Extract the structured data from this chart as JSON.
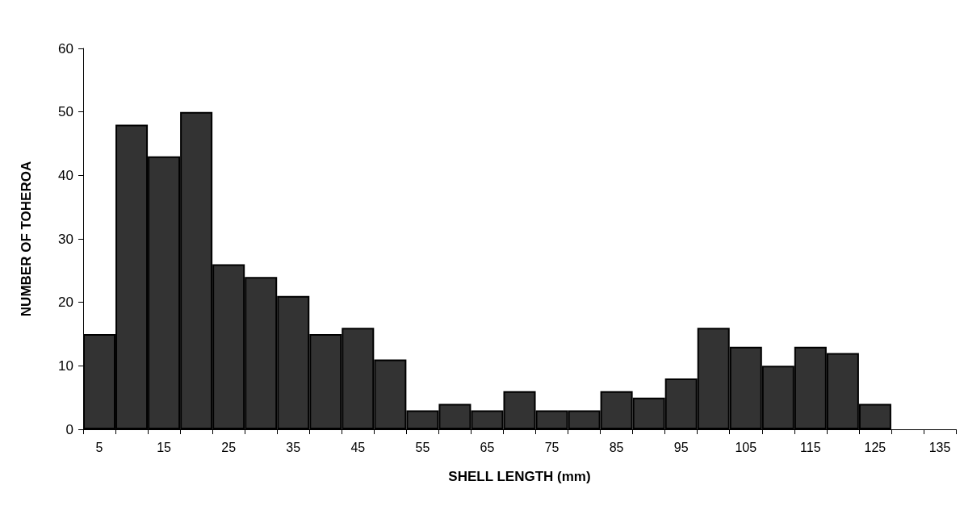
{
  "chart_data": {
    "type": "bar",
    "xlabel": "SHELL LENGTH (mm)",
    "ylabel": "NUMBER OF TOHEROA",
    "categories": [
      "5",
      null,
      "15",
      null,
      "25",
      null,
      "35",
      null,
      "45",
      null,
      "55",
      null,
      "65",
      null,
      "75",
      null,
      "85",
      null,
      "95",
      null,
      "105",
      null,
      "115",
      null,
      "125",
      null,
      "135"
    ],
    "values": [
      15,
      48,
      43,
      50,
      26,
      24,
      21,
      15,
      16,
      11,
      3,
      4,
      3,
      6,
      3,
      3,
      6,
      5,
      8,
      16,
      13,
      10,
      13,
      12,
      4,
      null,
      null
    ],
    "color": "#333333",
    "ylim": [
      0,
      60
    ],
    "yticks": [
      0,
      10,
      20,
      30,
      40,
      50,
      60
    ],
    "grid": false
  }
}
